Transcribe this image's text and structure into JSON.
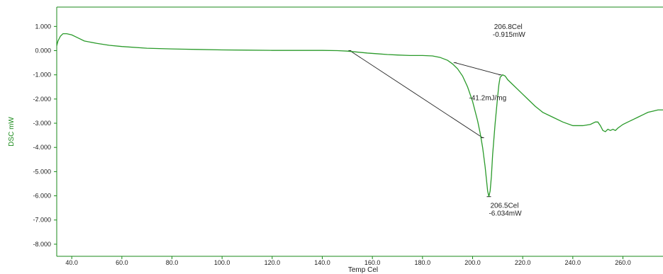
{
  "chart_data": {
    "type": "line",
    "xlabel": "Temp Cel",
    "ylabel": "DSC mW",
    "xlim": [
      34,
      276
    ],
    "ylim": [
      -8.5,
      1.8
    ],
    "x_ticks": [
      "40.0",
      "60.0",
      "80.0",
      "100.0",
      "120.0",
      "140.0",
      "160.0",
      "180.0",
      "200.0",
      "220.0",
      "240.0",
      "260.0"
    ],
    "x_tick_values": [
      40,
      60,
      80,
      100,
      120,
      140,
      160,
      180,
      200,
      220,
      240,
      260
    ],
    "y_ticks": [
      "1.000",
      "0.000",
      "-1.000",
      "-2.000",
      "-3.000",
      "-4.000",
      "-5.000",
      "-6.000",
      "-7.000",
      "-8.000"
    ],
    "y_tick_values": [
      1,
      0,
      -1,
      -2,
      -3,
      -4,
      -5,
      -6,
      -7,
      -8
    ],
    "grid": false,
    "colors": {
      "curve": "#2a9a2a",
      "axis": "#1a8a1a",
      "annotation": "#222222"
    },
    "series": [
      {
        "x": [
          34,
          34.5,
          35.5,
          36.5,
          38,
          40,
          42,
          45,
          50,
          55,
          60,
          70,
          80,
          90,
          100,
          110,
          120,
          130,
          140,
          146,
          150,
          154,
          158,
          162,
          166,
          170,
          175,
          180,
          184,
          187,
          190,
          192,
          194,
          196,
          198,
          200,
          202,
          203,
          204,
          205,
          205.5,
          206,
          206.5,
          207,
          207.5,
          208,
          209,
          210,
          210.5,
          211,
          212,
          213,
          214,
          216,
          218,
          220,
          222,
          225,
          228,
          232,
          236,
          240,
          244,
          247,
          249,
          250,
          251,
          252,
          253,
          254,
          255,
          256,
          257,
          258,
          260,
          262,
          264,
          266,
          268,
          270,
          272,
          274,
          276
        ],
        "y": [
          0.2,
          0.4,
          0.6,
          0.7,
          0.7,
          0.65,
          0.55,
          0.4,
          0.3,
          0.22,
          0.17,
          0.1,
          0.07,
          0.05,
          0.03,
          0.02,
          0.01,
          0.01,
          0.01,
          0.0,
          -0.02,
          -0.06,
          -0.1,
          -0.13,
          -0.16,
          -0.18,
          -0.2,
          -0.2,
          -0.22,
          -0.28,
          -0.4,
          -0.55,
          -0.75,
          -1.05,
          -1.5,
          -2.1,
          -2.9,
          -3.4,
          -4.0,
          -4.8,
          -5.3,
          -5.8,
          -6.03,
          -5.8,
          -5.2,
          -4.3,
          -3.0,
          -1.9,
          -1.4,
          -1.1,
          -1.0,
          -1.05,
          -1.2,
          -1.4,
          -1.6,
          -1.8,
          -2.0,
          -2.3,
          -2.55,
          -2.75,
          -2.95,
          -3.1,
          -3.1,
          -3.05,
          -2.95,
          -2.95,
          -3.1,
          -3.3,
          -3.35,
          -3.25,
          -3.3,
          -3.25,
          -3.3,
          -3.2,
          -3.05,
          -2.95,
          -2.85,
          -2.75,
          -2.65,
          -2.55,
          -2.5,
          -2.45,
          -2.45
        ]
      }
    ],
    "annotations": [
      {
        "lines": [
          "206.8Cel",
          "-0.915mW"
        ],
        "x": 206.8,
        "y": -0.915,
        "anchor_x": 208,
        "anchor_y": 0.9
      },
      {
        "lines": [
          "-41.2mJ/mg"
        ],
        "x": 198,
        "y": -2.0,
        "anchor_x": 198,
        "anchor_y": -2.05
      },
      {
        "lines": [
          "206.5Cel",
          "-6.034mW"
        ],
        "x": 206.5,
        "y": -6.034,
        "anchor_x": 206.5,
        "anchor_y": -6.5
      }
    ],
    "baseline": {
      "x1": 151,
      "y1": 0.0,
      "x2": 204,
      "y2": -3.6
    },
    "onset_tangent": {
      "x1": 193,
      "y1": -0.5,
      "x2": 211,
      "y2": -1.0
    }
  }
}
